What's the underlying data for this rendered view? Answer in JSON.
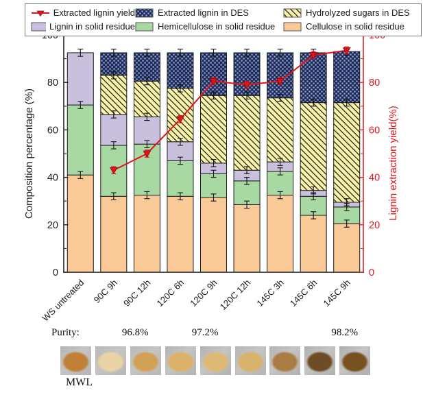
{
  "legend": {
    "items": [
      {
        "label": "Extracted lignin yield",
        "swatch": "line"
      },
      {
        "label": "Extracted lignin in DES",
        "swatch": "checker"
      },
      {
        "label": "Hydrolyzed sugars in DES",
        "swatch": "hatch"
      },
      {
        "label": "Lignin in solid residue",
        "swatch": "plain",
        "color": "#c9c0dd"
      },
      {
        "label": "Hemicellulose in solid residue",
        "swatch": "plain",
        "color": "#a9d9a2"
      },
      {
        "label": "Cellulose in solid residue",
        "swatch": "plain",
        "color": "#f9c998"
      }
    ]
  },
  "chart_data": {
    "type": "stacked-bar-line",
    "categories": [
      "WS untreated",
      "90C 9h",
      "90C 12h",
      "120C 6h",
      "120C 9h",
      "120C 12h",
      "145C 3h",
      "145C 6h",
      "145C 9h"
    ],
    "series": [
      {
        "name": "Cellulose in solid residue",
        "style": "plain",
        "color": "#f9c998",
        "values": [
          41,
          32,
          32.5,
          32,
          31.5,
          28.5,
          32.5,
          24,
          20.5
        ]
      },
      {
        "name": "Hemicellulose in solid residue",
        "style": "plain",
        "color": "#a9d9a2",
        "values": [
          29.5,
          21.5,
          21.5,
          15,
          10,
          10,
          10,
          8,
          7
        ]
      },
      {
        "name": "Lignin in solid residue",
        "style": "plain",
        "color": "#c9c0dd",
        "values": [
          22,
          13,
          11.5,
          8,
          4.5,
          4.5,
          4,
          2.5,
          2
        ]
      },
      {
        "name": "Hydrolyzed sugars in DES",
        "style": "hatch",
        "color": "#f9f4a7",
        "hatch_color": "#1a1a1a",
        "values": [
          0,
          16.5,
          15,
          22.5,
          28.5,
          31.5,
          27,
          37,
          42
        ]
      },
      {
        "name": "Extracted lignin in DES",
        "style": "checker",
        "color": "#1c2b5c",
        "dot_color": "#93a2c6",
        "values": [
          0,
          9.5,
          12,
          15,
          18,
          18,
          19,
          21,
          21.5
        ]
      }
    ],
    "line_series": {
      "name": "Extracted lignin yield",
      "color": "#e0151b",
      "marker": "triangle-down",
      "values": [
        null,
        43,
        50,
        64.5,
        80.5,
        79,
        80.5,
        91.5,
        93.5
      ],
      "error_bar": 1.5
    },
    "bar_error_bar": 1.5,
    "left_axis": {
      "label": "Composition percentage (%)",
      "range": [
        0,
        100
      ],
      "major_ticks": [
        0,
        20,
        40,
        60,
        80,
        100
      ],
      "minor_step": 10,
      "color": "#1a1a1a"
    },
    "right_axis": {
      "label": "Lignin extraction yield(%)",
      "range": [
        0,
        100
      ],
      "major_ticks": [
        0,
        20,
        40,
        60,
        80,
        100
      ],
      "minor_step": 10,
      "color": "#e0151b"
    },
    "grid": false,
    "legend_position": "top"
  },
  "samples": {
    "purity_label": "Purity:",
    "purities": [
      {
        "value": "96.8%",
        "photo_index": 3
      },
      {
        "value": "97.2%",
        "photo_index": 5
      },
      {
        "value": "98.2%",
        "photo_index": 9
      }
    ],
    "mwl_label": "MWL",
    "photos": [
      {
        "name": "sample-mwl",
        "pile_color": "#c08035",
        "bg": "#b6b4b2"
      },
      {
        "name": "sample-90c-9h",
        "pile_color": "#e9d4a5",
        "bg": "#bab8b6"
      },
      {
        "name": "sample-90c-12h",
        "pile_color": "#d3a156",
        "bg": "#bbb9b7"
      },
      {
        "name": "sample-120c-6h",
        "pile_color": "#ddb269",
        "bg": "#b5b3b1"
      },
      {
        "name": "sample-120c-9h",
        "pile_color": "#dcba76",
        "bg": "#b3b1af"
      },
      {
        "name": "sample-120c-12h",
        "pile_color": "#d8b36c",
        "bg": "#b7b5b3"
      },
      {
        "name": "sample-145c-3h",
        "pile_color": "#a87c42",
        "bg": "#b4b2b0"
      },
      {
        "name": "sample-145c-6h",
        "pile_color": "#6e4d26",
        "bg": "#b2b0ae"
      },
      {
        "name": "sample-145c-9h",
        "pile_color": "#755220",
        "bg": "#b0aeac"
      }
    ]
  }
}
